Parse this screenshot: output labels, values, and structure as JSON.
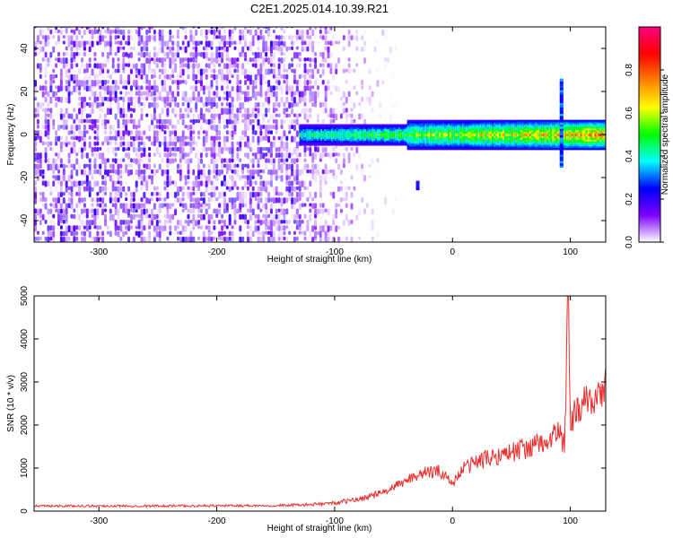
{
  "title": "C2E1.2025.014.10.39.R21",
  "chart_data": [
    {
      "type": "heatmap",
      "xlabel": "Height of straight line (km)",
      "ylabel": "Frequency (Hz)",
      "xlim": [
        -355,
        130
      ],
      "ylim": [
        -50,
        50
      ],
      "xticks": [
        -300,
        -200,
        -100,
        0,
        100
      ],
      "xtick_labels": [
        "-300",
        "-200",
        "-100",
        "0",
        "100"
      ],
      "yticks": [
        -40,
        -20,
        0,
        20,
        40
      ],
      "ytick_labels": [
        "-40",
        "-20",
        "0",
        "20",
        "40"
      ],
      "colorbar": {
        "label": "Normalized spectral amplitude",
        "range": [
          0,
          1
        ],
        "ticks": [
          0,
          0.2,
          0.4,
          0.6,
          0.8
        ],
        "tick_labels": [
          "0.0",
          "0.2",
          "0.4",
          "0.6",
          "0.8"
        ],
        "colormap": [
          "#ffffff",
          "#7b00ff",
          "#0000ff",
          "#00ffff",
          "#00ff00",
          "#ffff00",
          "#ff8000",
          "#ff0000",
          "#ff0080"
        ]
      },
      "noise_region": {
        "x_range": [
          -355,
          -45
        ],
        "amplitude": 0.15
      },
      "ridge": {
        "x_range": [
          -130,
          130
        ],
        "frequency": 0,
        "amplitude": [
          0.25,
          0.9
        ]
      },
      "features": [
        {
          "x": -30,
          "frequency": -24,
          "amplitude": 0.3
        },
        {
          "x": 92,
          "frequency": [
            -15,
            25
          ],
          "amplitude": 0.35
        }
      ],
      "grid": false,
      "legend": "none"
    },
    {
      "type": "line",
      "xlabel": "Height of straight line (km)",
      "ylabel": "SNR (10 * v/v)",
      "xlim": [
        -355,
        130
      ],
      "ylim": [
        0,
        5000
      ],
      "xticks": [
        -300,
        -200,
        -100,
        0,
        100
      ],
      "xtick_labels": [
        "-300",
        "-200",
        "-100",
        "0",
        "100"
      ],
      "yticks": [
        0,
        1000,
        2000,
        3000,
        4000,
        5000
      ],
      "ytick_labels": [
        "0",
        "1000",
        "2000",
        "3000",
        "4000",
        "5000"
      ],
      "series": [
        {
          "color": "#e8302e",
          "x": [
            -355,
            -300,
            -250,
            -200,
            -150,
            -120,
            -100,
            -80,
            -60,
            -50,
            -40,
            -30,
            -20,
            -10,
            0,
            10,
            20,
            40,
            60,
            80,
            85,
            90,
            95,
            98,
            100,
            105,
            110,
            120,
            130
          ],
          "values": [
            120,
            120,
            120,
            125,
            130,
            150,
            190,
            270,
            420,
            550,
            700,
            850,
            900,
            920,
            650,
            1000,
            1150,
            1300,
            1450,
            1600,
            1700,
            1900,
            1500,
            4900,
            2000,
            2300,
            2450,
            2650,
            2850
          ]
        }
      ],
      "grid": false,
      "legend": "none"
    }
  ]
}
